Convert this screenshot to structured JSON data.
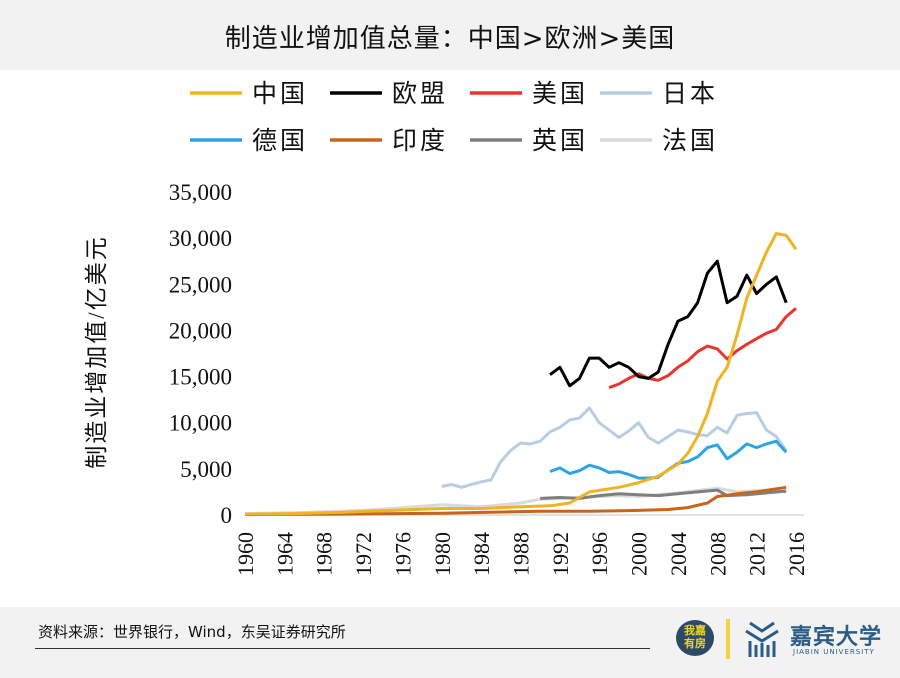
{
  "title": "制造业增加值总量：中国>欧洲>美国",
  "footer": {
    "source": "资料来源：世界银行，Wind，东吴证券研究所",
    "logo_badge": "我嘉有房",
    "logo_cn": "嘉宾大学",
    "logo_en": "JIABIN UNIVERSITY"
  },
  "chart_data": {
    "type": "line",
    "title": "",
    "xlabel": "",
    "ylabel": "制造业增加值/亿美元",
    "xlim": [
      1960,
      2016
    ],
    "ylim": [
      0,
      35000
    ],
    "x_ticks": [
      "1960",
      "1964",
      "1968",
      "1972",
      "1976",
      "1980",
      "1984",
      "1988",
      "1992",
      "1996",
      "2000",
      "2004",
      "2008",
      "2012",
      "2016"
    ],
    "y_ticks": [
      "0",
      "5,000",
      "10,000",
      "15,000",
      "20,000",
      "25,000",
      "30,000",
      "35,000"
    ],
    "grid": false,
    "legend_position": "top",
    "series": [
      {
        "name": "中国",
        "color": "#f0b323",
        "x": [
          1960,
          1965,
          1970,
          1975,
          1980,
          1984,
          1988,
          1991,
          1993,
          1995,
          1998,
          2000,
          2002,
          2004,
          2005,
          2006,
          2007,
          2008,
          2009,
          2010,
          2011,
          2012,
          2013,
          2014,
          2015,
          2016
        ],
        "y": [
          100,
          150,
          300,
          500,
          700,
          700,
          900,
          1000,
          1300,
          2500,
          3000,
          3500,
          4200,
          5500,
          6700,
          8500,
          11000,
          14500,
          16000,
          19500,
          23500,
          26000,
          28500,
          30500,
          30300,
          28800
        ]
      },
      {
        "name": "欧盟",
        "color": "#000000",
        "x": [
          1991,
          1992,
          1993,
          1994,
          1995,
          1996,
          1997,
          1998,
          1999,
          2000,
          2001,
          2002,
          2003,
          2004,
          2005,
          2006,
          2007,
          2008,
          2009,
          2010,
          2011,
          2012,
          2013,
          2014,
          2015
        ],
        "y": [
          15200,
          16000,
          14000,
          14800,
          17000,
          17000,
          16000,
          16500,
          16000,
          15000,
          14800,
          15500,
          18500,
          21000,
          21500,
          23000,
          26200,
          27500,
          23000,
          23700,
          26000,
          24000,
          25000,
          25800,
          23000
        ]
      },
      {
        "name": "美国",
        "color": "#e8352e",
        "x": [
          1997,
          1998,
          1999,
          2000,
          2001,
          2002,
          2003,
          2004,
          2005,
          2006,
          2007,
          2008,
          2009,
          2010,
          2011,
          2012,
          2013,
          2014,
          2015,
          2016
        ],
        "y": [
          13800,
          14200,
          14800,
          15300,
          14800,
          14600,
          15100,
          16000,
          16700,
          17700,
          18300,
          18000,
          16900,
          17800,
          18500,
          19100,
          19700,
          20100,
          21500,
          22400
        ]
      },
      {
        "name": "日本",
        "color": "#b7cde4",
        "x": [
          1980,
          1981,
          1982,
          1983,
          1984,
          1985,
          1986,
          1987,
          1988,
          1989,
          1990,
          1991,
          1992,
          1993,
          1994,
          1995,
          1996,
          1997,
          1998,
          1999,
          2000,
          2001,
          2002,
          2003,
          2004,
          2005,
          2006,
          2007,
          2008,
          2009,
          2010,
          2011,
          2012,
          2013,
          2014,
          2015
        ],
        "y": [
          3100,
          3300,
          3000,
          3300,
          3600,
          3800,
          5800,
          7000,
          7800,
          7700,
          8000,
          9000,
          9500,
          10300,
          10500,
          11600,
          10000,
          9200,
          8400,
          9100,
          10000,
          8400,
          7800,
          8500,
          9200,
          9000,
          8700,
          8600,
          9500,
          8900,
          10800,
          11000,
          11100,
          9200,
          8500,
          7000
        ]
      },
      {
        "name": "德国",
        "color": "#2aa7e0",
        "x": [
          1991,
          1992,
          1993,
          1994,
          1995,
          1996,
          1997,
          1998,
          1999,
          2000,
          2001,
          2002,
          2003,
          2004,
          2005,
          2006,
          2007,
          2008,
          2009,
          2010,
          2011,
          2012,
          2013,
          2014,
          2015
        ],
        "y": [
          4700,
          5100,
          4500,
          4800,
          5400,
          5100,
          4600,
          4700,
          4400,
          4000,
          4000,
          4100,
          4900,
          5600,
          5800,
          6300,
          7300,
          7600,
          6100,
          6800,
          7700,
          7300,
          7700,
          8000,
          6800
        ]
      },
      {
        "name": "印度",
        "color": "#c8651b",
        "x": [
          1960,
          1970,
          1980,
          1990,
          1995,
          2000,
          2003,
          2005,
          2007,
          2008,
          2010,
          2012,
          2015
        ],
        "y": [
          50,
          100,
          200,
          400,
          400,
          500,
          600,
          800,
          1300,
          2000,
          2300,
          2500,
          3000
        ]
      },
      {
        "name": "英国",
        "color": "#7f7f7f",
        "x": [
          1990,
          1992,
          1994,
          1996,
          1998,
          2000,
          2002,
          2004,
          2006,
          2008,
          2009,
          2011,
          2013,
          2015
        ],
        "y": [
          1800,
          1900,
          1800,
          2100,
          2300,
          2200,
          2100,
          2300,
          2500,
          2700,
          2100,
          2200,
          2400,
          2600
        ]
      },
      {
        "name": "法国",
        "color": "#d9d9d9",
        "x": [
          1960,
          1965,
          1970,
          1975,
          1980,
          1984,
          1988,
          1990,
          1994,
          1998,
          2000,
          2004,
          2008,
          2010,
          2013,
          2015
        ],
        "y": [
          150,
          250,
          400,
          700,
          1100,
          900,
          1300,
          1700,
          1900,
          2100,
          2000,
          2400,
          2900,
          2500,
          2700,
          2500
        ]
      }
    ]
  }
}
